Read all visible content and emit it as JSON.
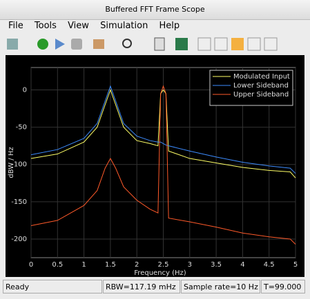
{
  "window": {
    "title": "Buffered FFT Frame Scope",
    "menu": [
      "File",
      "Tools",
      "View",
      "Simulation",
      "Help"
    ],
    "status": [
      "Ready",
      "RBW=117.19 mHz",
      "Sample rate=10 Hz",
      "T=99.000"
    ]
  },
  "chart_data": {
    "type": "line",
    "xlabel": "Frequency (Hz)",
    "ylabel": "dBW / Hz",
    "x": [
      0,
      0.5,
      1,
      1.25,
      1.4,
      1.5,
      1.6,
      1.75,
      2,
      2.25,
      2.4,
      2.45,
      2.5,
      2.55,
      2.6,
      3,
      3.5,
      4,
      4.5,
      4.9,
      5
    ],
    "series": [
      {
        "name": "Modulated Input",
        "color": "#ffff66",
        "values": [
          -92,
          -86,
          -70,
          -50,
          -20,
          0,
          -20,
          -50,
          -68,
          -72,
          -75,
          -5,
          0,
          -5,
          -82,
          -92,
          -98,
          -104,
          -108,
          -110,
          -118
        ]
      },
      {
        "name": "Lower Sideband",
        "color": "#3d8cff",
        "values": [
          -87,
          -80,
          -65,
          -45,
          -15,
          5,
          -15,
          -45,
          -62,
          -68,
          -70,
          -70,
          -72,
          -74,
          -75,
          -82,
          -90,
          -97,
          -102,
          -105,
          -112
        ]
      },
      {
        "name": "Upper Sideband",
        "color": "#ff5a2a",
        "values": [
          -182,
          -175,
          -155,
          -135,
          -105,
          -92,
          -105,
          -130,
          -148,
          -160,
          -165,
          -5,
          5,
          -5,
          -172,
          -177,
          -184,
          -192,
          -197,
          -200,
          -207
        ]
      }
    ],
    "xlim": [
      0,
      5
    ],
    "ylim": [
      -225,
      30
    ],
    "xticks": [
      0,
      0.5,
      1,
      1.5,
      2,
      2.5,
      3,
      3.5,
      4,
      4.5,
      5
    ],
    "yticks": [
      0,
      -50,
      -100,
      -150,
      -200
    ],
    "grid": true,
    "legend": "upper-right"
  }
}
